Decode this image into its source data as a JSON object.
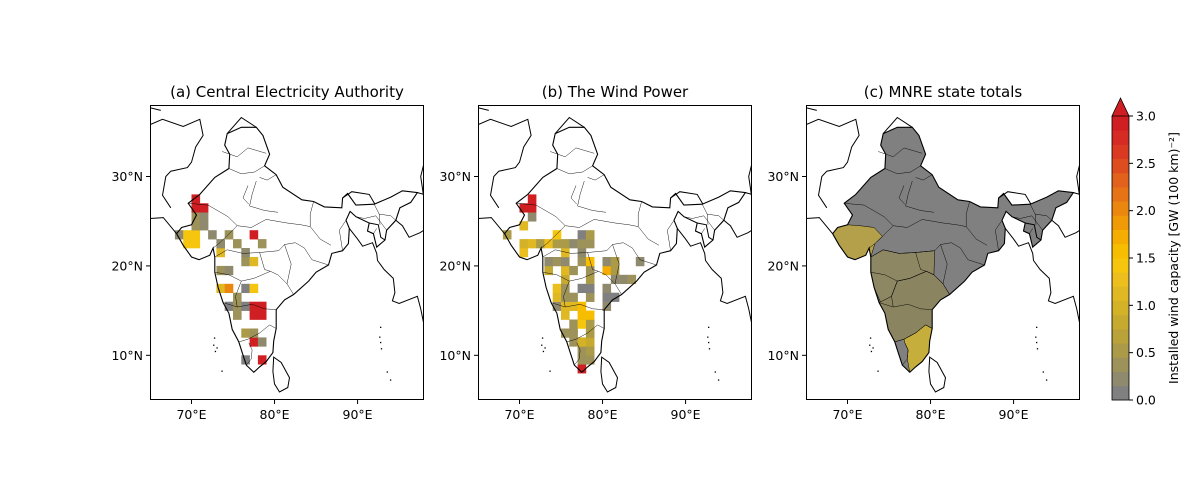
{
  "panels": [
    {
      "id": "a",
      "title": "(a) Central Electricity Authority",
      "style": "grid",
      "seed": 11,
      "hotspots": [
        [
          71,
          27,
          4
        ],
        [
          78,
          24,
          3.5
        ],
        [
          75,
          18,
          2
        ],
        [
          78,
          15,
          3.8
        ],
        [
          77,
          11,
          3.5
        ],
        [
          78,
          9,
          4
        ],
        [
          70,
          23,
          1.4
        ]
      ]
    },
    {
      "id": "b",
      "title": "(b) The Wind Power",
      "style": "grid",
      "seed": 29,
      "hotspots": [
        [
          71,
          27,
          4
        ],
        [
          78,
          15,
          1.6
        ],
        [
          78,
          8,
          4
        ],
        [
          70,
          23,
          1.0
        ],
        [
          76,
          15,
          1.2
        ]
      ]
    },
    {
      "id": "c",
      "title": "(c) MNRE state totals",
      "style": "states",
      "seed": 0,
      "hotspots": []
    }
  ],
  "axes": {
    "lon_ticks": [
      70,
      80,
      90
    ],
    "lat_ticks": [
      10,
      20,
      30
    ],
    "lon_range": [
      65,
      98
    ],
    "lat_range": [
      5,
      38
    ],
    "lon_tick_labels": [
      "70°E",
      "80°E",
      "90°E"
    ],
    "lat_tick_labels": [
      "10°N",
      "20°N",
      "30°N"
    ]
  },
  "colorbar": {
    "label": "Installed wind capacity [GW (100 km)⁻²]",
    "ticks": [
      0.0,
      0.5,
      1.0,
      1.5,
      2.0,
      2.5,
      3.0
    ],
    "tick_labels": [
      "0.0",
      "0.5",
      "1.0",
      "1.5",
      "2.0",
      "2.5",
      "3.0"
    ],
    "vmin": 0.0,
    "vmax": 3.0,
    "extend": "max",
    "colors": [
      "#808080",
      "#8f8a6e",
      "#9d925a",
      "#ab9a48",
      "#b9a23a",
      "#c6aa30",
      "#d3b228",
      "#e0b823",
      "#ecbe1e",
      "#f5c60d",
      "#f7bd00",
      "#f4ad00",
      "#ef9a06",
      "#eb870e",
      "#e67417",
      "#e2611c",
      "#de4d20",
      "#da3922",
      "#d62a24",
      "#cf1f22"
    ]
  },
  "map_colors": {
    "land_state_c": "#808080",
    "gujarat": "#b4a04a",
    "maharashtra": "#8e8763",
    "deccan": "#8a8460",
    "tamil_nadu": "#c6ae3d"
  }
}
